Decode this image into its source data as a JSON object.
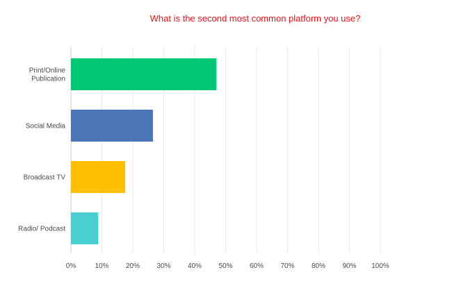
{
  "chart_data": {
    "type": "bar",
    "orientation": "horizontal",
    "title": "What is the second most common platform you use?",
    "categories": [
      [
        "Print/Online",
        "Publication"
      ],
      [
        "Social Media"
      ],
      [
        "Broadcast TV"
      ],
      [
        "Radio/ Podcast"
      ]
    ],
    "values": [
      47,
      26.5,
      17.5,
      8.8
    ],
    "colors": [
      "#00c875",
      "#4a76b8",
      "#ffbe00",
      "#4acfd1"
    ],
    "xlim": [
      0,
      100
    ],
    "ticks": [
      "0%",
      "10%",
      "20%",
      "30%",
      "40%",
      "50%",
      "60%",
      "70%",
      "80%",
      "90%",
      "100%"
    ],
    "tick_values": [
      0,
      10,
      20,
      30,
      40,
      50,
      60,
      70,
      80,
      90,
      100
    ],
    "grid": true,
    "legend": "none"
  }
}
